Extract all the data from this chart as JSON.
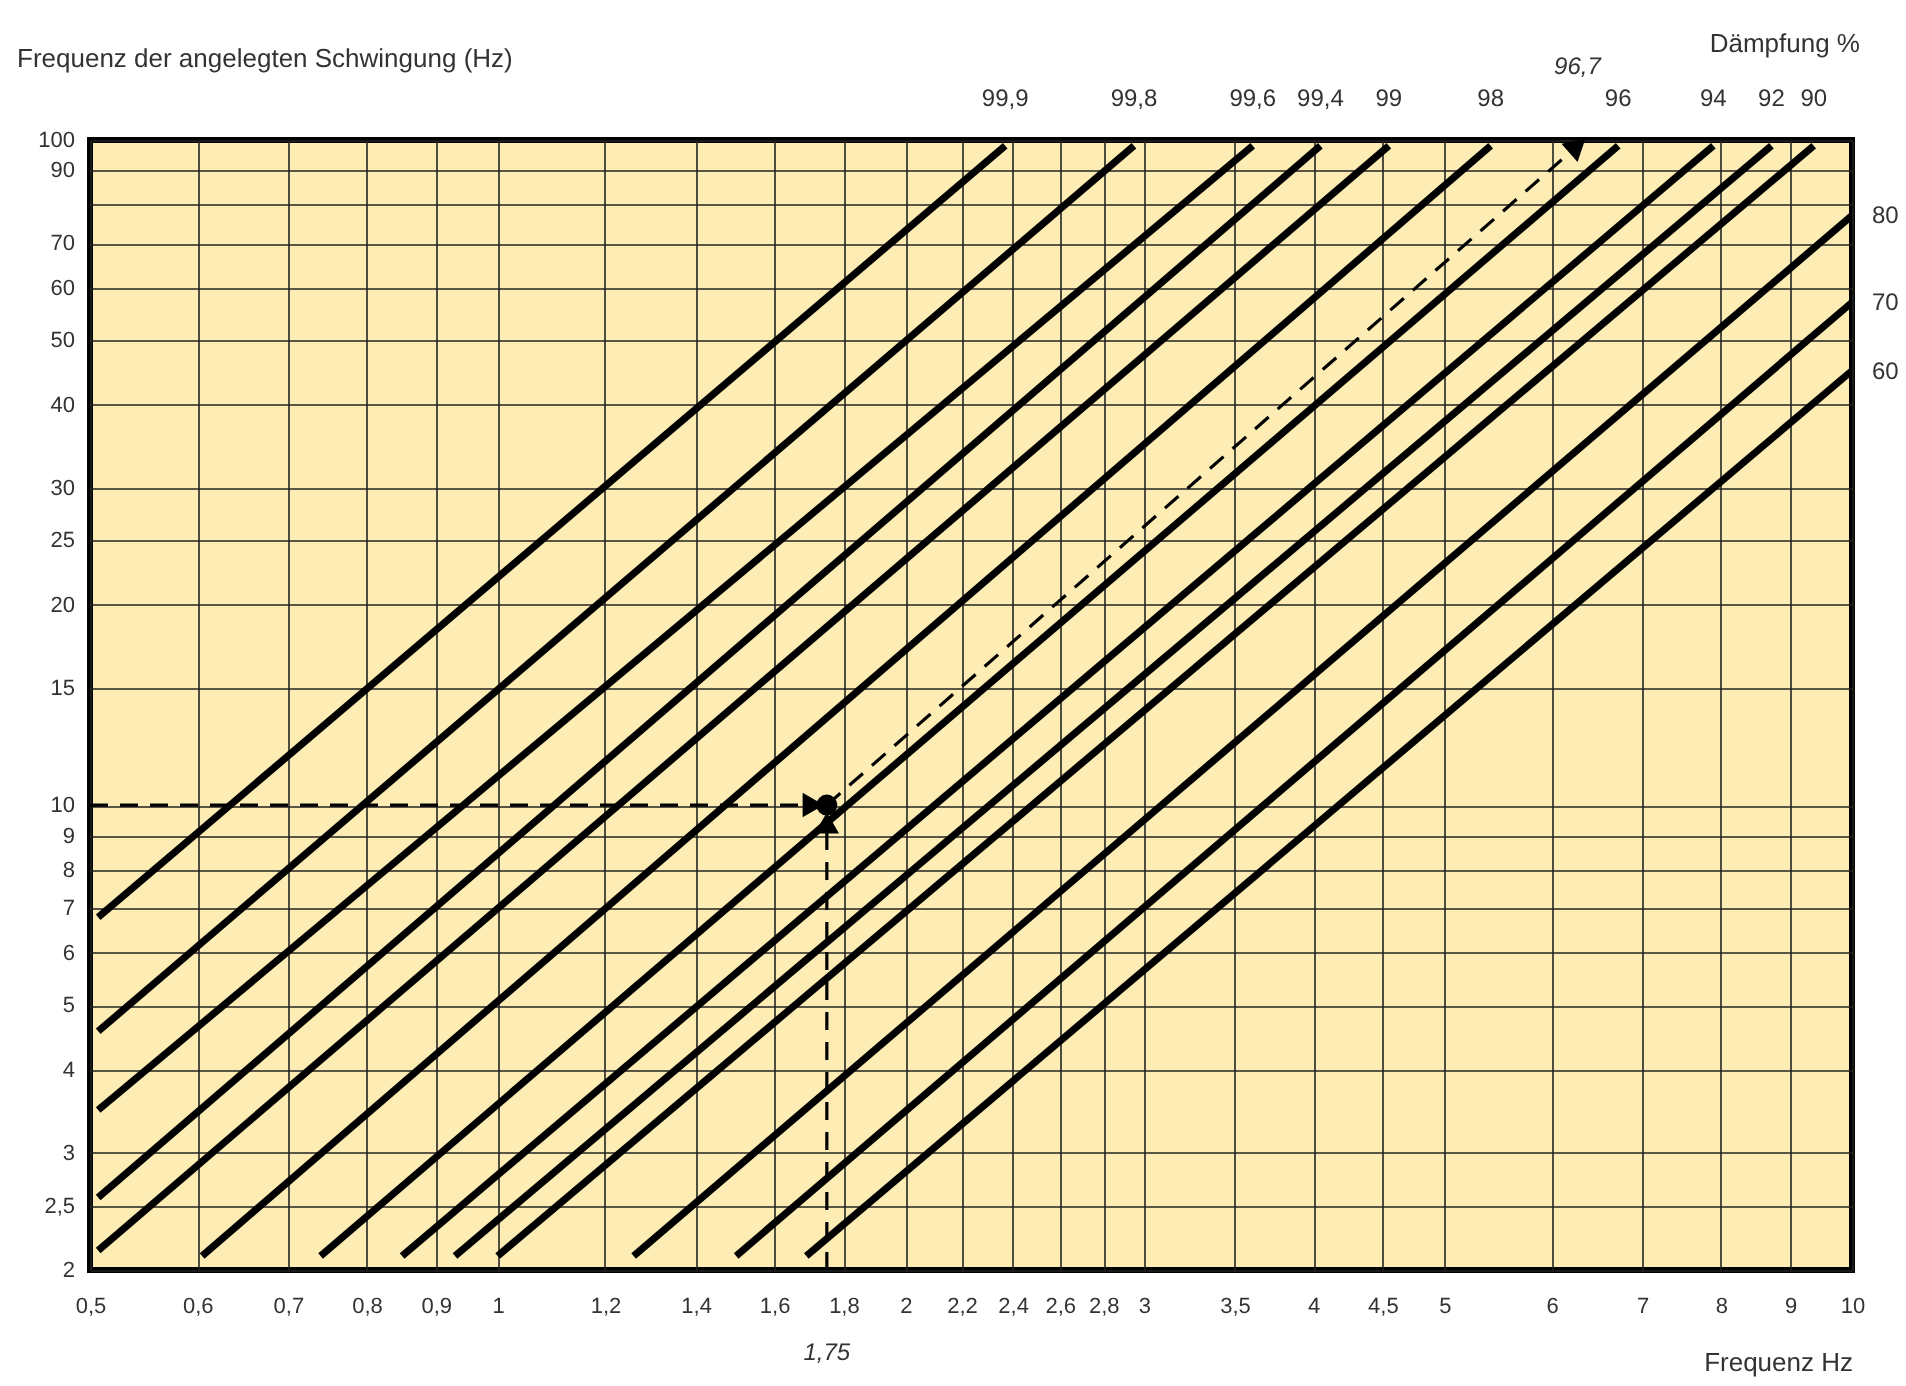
{
  "chart_data": {
    "type": "line",
    "xlabel": "Frequenz Hz",
    "ylabel": "Frequenz der angelegten Schwingung (Hz)",
    "legend_title": "Dämpfung %",
    "log": "xy",
    "grid": true,
    "xlim": [
      0.5,
      10
    ],
    "ylim": [
      2,
      100
    ],
    "xticks": [
      {
        "value": 0.5,
        "label": "0,5"
      },
      {
        "value": 0.6,
        "label": "0,6"
      },
      {
        "value": 0.7,
        "label": "0,7"
      },
      {
        "value": 0.8,
        "label": "0,8"
      },
      {
        "value": 0.9,
        "label": "0,9"
      },
      1,
      {
        "value": 1.2,
        "label": "1,2"
      },
      {
        "value": 1.4,
        "label": "1,4"
      },
      {
        "value": 1.6,
        "label": "1,6"
      },
      {
        "value": 1.8,
        "label": "1,8"
      },
      2,
      {
        "value": 2.2,
        "label": "2,2"
      },
      {
        "value": 2.4,
        "label": "2,4"
      },
      {
        "value": 2.6,
        "label": "2,6"
      },
      {
        "value": 2.8,
        "label": "2,8"
      },
      3,
      {
        "value": 3.5,
        "label": "3,5"
      },
      4,
      {
        "value": 4.5,
        "label": "4,5"
      },
      5,
      6,
      7,
      8,
      9,
      10
    ],
    "yticks": [
      2,
      {
        "value": 2.5,
        "label": "2,5"
      },
      3,
      4,
      5,
      6,
      7,
      8,
      9,
      10,
      15,
      20,
      25,
      30,
      40,
      50,
      60,
      70,
      {
        "value": 80,
        "label": null
      },
      90,
      100
    ],
    "annotations": [
      {
        "text": "96,7",
        "x": 6.27,
        "y": 100
      },
      {
        "text": "1,75",
        "x": 1.75,
        "y": 2
      }
    ],
    "series": [
      {
        "name": "99,9",
        "color": "#000000",
        "x": [
          0.507,
          2.37
        ],
        "values": [
          6.78,
          98
        ]
      },
      {
        "name": "99,8",
        "color": "#000000",
        "x": [
          0.507,
          2.95
        ],
        "values": [
          4.57,
          98
        ]
      },
      {
        "name": "99,6",
        "color": "#000000",
        "x": [
          0.507,
          3.61
        ],
        "values": [
          3.48,
          98
        ]
      },
      {
        "name": "99,4",
        "color": "#000000",
        "x": [
          0.507,
          4.05
        ],
        "values": [
          2.57,
          98
        ]
      },
      {
        "name": "99",
        "color": "#000000",
        "x": [
          0.507,
          4.55
        ],
        "values": [
          2.14,
          98
        ]
      },
      {
        "name": "98",
        "color": "#000000",
        "x": [
          0.605,
          5.41
        ],
        "values": [
          2.1,
          98
        ]
      },
      {
        "name": "96",
        "color": "#000000",
        "x": [
          0.74,
          6.72
        ],
        "values": [
          2.1,
          98
        ]
      },
      {
        "name": "94",
        "color": "#000000",
        "x": [
          0.85,
          7.9
        ],
        "values": [
          2.1,
          98
        ]
      },
      {
        "name": "92",
        "color": "#000000",
        "x": [
          0.93,
          8.72
        ],
        "values": [
          2.1,
          98
        ]
      },
      {
        "name": "90",
        "color": "#000000",
        "x": [
          1.0,
          9.37
        ],
        "values": [
          2.1,
          98
        ]
      },
      {
        "name": "80",
        "color": "#000000",
        "x": [
          1.26,
          10
        ],
        "values": [
          2.1,
          77
        ]
      },
      {
        "name": "70",
        "color": "#000000",
        "x": [
          1.5,
          10
        ],
        "values": [
          2.1,
          57
        ]
      },
      {
        "name": "60",
        "color": "#000000",
        "x": [
          1.69,
          10
        ],
        "values": [
          2.1,
          45
        ]
      },
      {
        "color": "#000000",
        "line_style": "dashed",
        "x": [
          0.5,
          1.71
        ],
        "values": [
          10,
          10
        ]
      },
      {
        "color": "#000000",
        "line_style": "dashed",
        "x": [
          1.75,
          1.75
        ],
        "values": [
          2,
          9.4
        ]
      },
      {
        "color": "#000000",
        "line_style": "dashed",
        "x": [
          1.75,
          6.27
        ],
        "values": [
          10,
          98
        ]
      },
      {
        "type": "scatter",
        "marker": "circle",
        "color": "#000000",
        "x": [
          1.75
        ],
        "values": [
          10
        ]
      }
    ]
  }
}
